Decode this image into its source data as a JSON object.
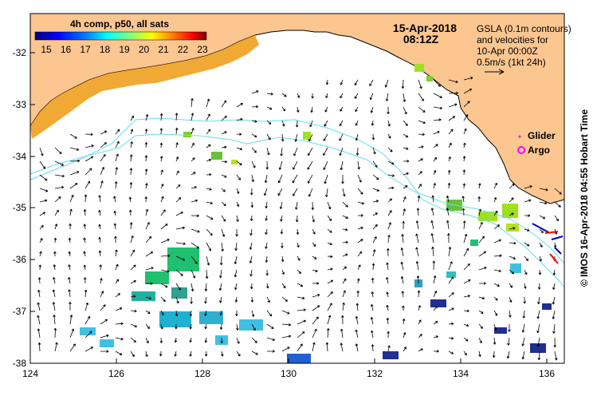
{
  "colorbar": {
    "title": "4h comp, p50, all sats",
    "ticks": [
      "15",
      "16",
      "17",
      "18",
      "19",
      "20",
      "21",
      "22",
      "23"
    ],
    "colors": [
      "#00007f",
      "#0000ff",
      "#007fff",
      "#00ffff",
      "#7fff7f",
      "#ffff00",
      "#ff7f00",
      "#ff0000",
      "#7f0000"
    ]
  },
  "timestamp": {
    "date": "15-Apr-2018",
    "time": "08:12Z"
  },
  "note": {
    "line1": "GSLA (0.1m contours)",
    "line2": "and velocities for",
    "line3": "10-Apr 00:00Z",
    "line4": "0.5m/s (1kt 24h)"
  },
  "legend": {
    "glider": {
      "label": "Glider",
      "color": "#cc33cc"
    },
    "argo": {
      "label": "Argo",
      "color": "#ff00ff"
    }
  },
  "credit": "© IMOS 16-Apr-2018 04:55 Hobart Time",
  "axes": {
    "lon_ticks": [
      "124",
      "126",
      "128",
      "130",
      "132",
      "134",
      "136"
    ],
    "lat_ticks": [
      "-32",
      "-33",
      "-34",
      "-35",
      "-36",
      "-37",
      "-38"
    ]
  },
  "colors": {
    "land": "#fbc690",
    "contour": "#66ddee",
    "warm_sst": "#f0a020",
    "arrow": "#000000"
  }
}
